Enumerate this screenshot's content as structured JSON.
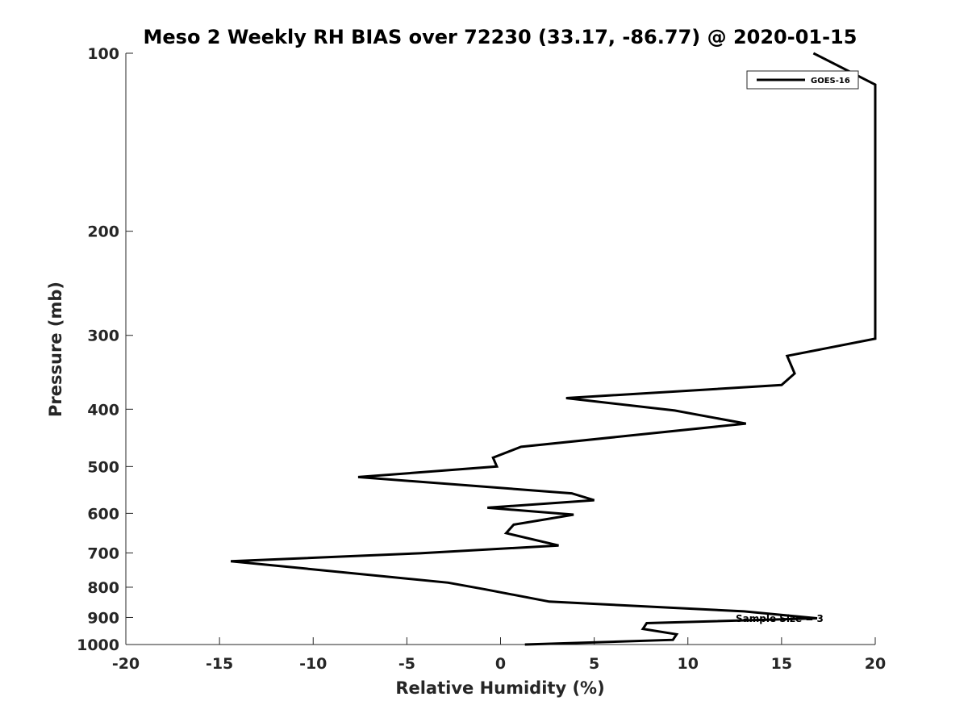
{
  "chart_data": {
    "type": "line",
    "title": "Meso 2 Weekly RH BIAS over 72230 (33.17, -86.77) @ 2020-01-15",
    "xlabel": "Relative Humidity (%)",
    "ylabel": "Pressure (mb)",
    "xlim": [
      -20,
      20
    ],
    "ylim": [
      100,
      1000
    ],
    "y_scale": "log",
    "y_inverted": true,
    "x_ticks": [
      -20,
      -15,
      -10,
      -5,
      0,
      5,
      10,
      15,
      20
    ],
    "y_ticks": [
      100,
      200,
      300,
      400,
      500,
      600,
      700,
      800,
      900,
      1000
    ],
    "grid": false,
    "legend_position": "top-right",
    "annotation": "Sample Size = 3",
    "series": [
      {
        "name": "GOES-16",
        "color": "#000000",
        "points": [
          {
            "x": 16.7,
            "y": 100
          },
          {
            "x": 20.0,
            "y": 113
          },
          {
            "x": 20.0,
            "y": 304
          },
          {
            "x": 15.3,
            "y": 325
          },
          {
            "x": 15.7,
            "y": 348
          },
          {
            "x": 15.0,
            "y": 364
          },
          {
            "x": 3.5,
            "y": 383
          },
          {
            "x": 9.3,
            "y": 402
          },
          {
            "x": 13.1,
            "y": 423
          },
          {
            "x": 1.1,
            "y": 463
          },
          {
            "x": -0.4,
            "y": 483
          },
          {
            "x": -0.2,
            "y": 500
          },
          {
            "x": -7.6,
            "y": 521
          },
          {
            "x": 3.8,
            "y": 555
          },
          {
            "x": 5.0,
            "y": 570
          },
          {
            "x": -0.7,
            "y": 587
          },
          {
            "x": 3.9,
            "y": 603
          },
          {
            "x": 0.7,
            "y": 627
          },
          {
            "x": 0.3,
            "y": 648
          },
          {
            "x": 3.1,
            "y": 680
          },
          {
            "x": -4.3,
            "y": 701
          },
          {
            "x": -14.4,
            "y": 723
          },
          {
            "x": -2.8,
            "y": 786
          },
          {
            "x": -0.8,
            "y": 807
          },
          {
            "x": 2.6,
            "y": 846
          },
          {
            "x": 13.0,
            "y": 879
          },
          {
            "x": 16.9,
            "y": 903
          },
          {
            "x": 7.8,
            "y": 920
          },
          {
            "x": 7.6,
            "y": 941
          },
          {
            "x": 9.4,
            "y": 961
          },
          {
            "x": 9.2,
            "y": 982
          },
          {
            "x": 1.3,
            "y": 1000
          }
        ]
      }
    ]
  }
}
